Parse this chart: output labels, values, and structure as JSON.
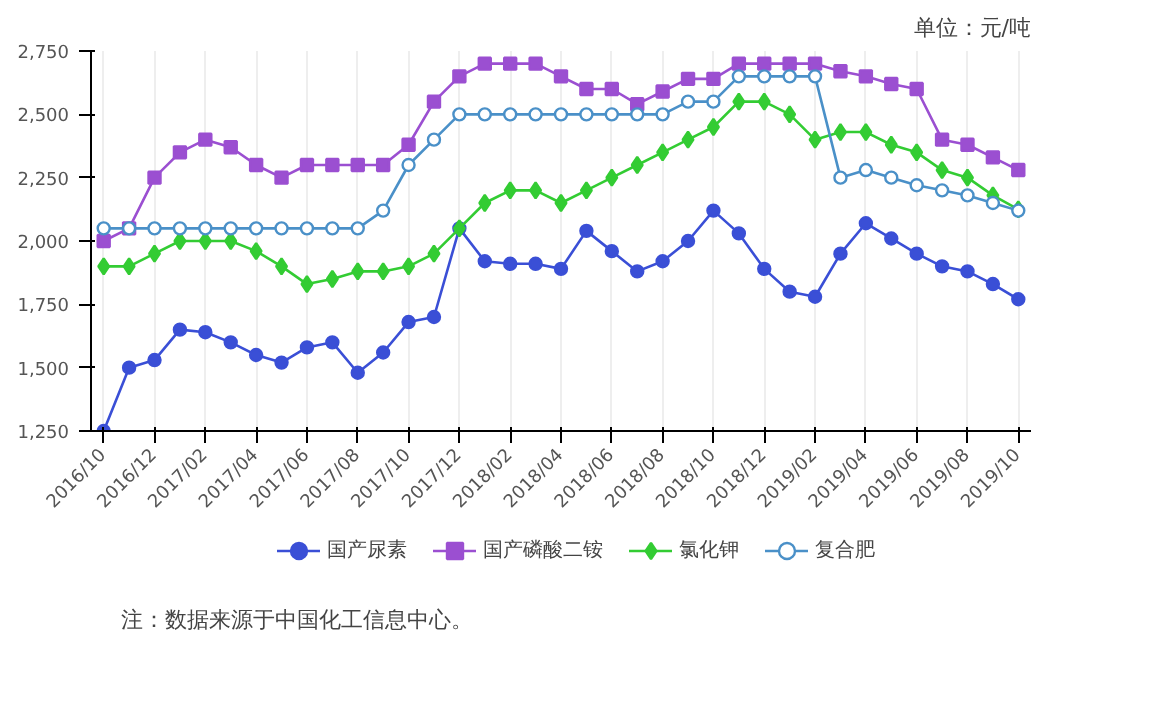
{
  "chart_data": {
    "type": "line",
    "categories": [
      "2016/10",
      null,
      "2016/12",
      null,
      "2017/02",
      null,
      "2017/04",
      null,
      "2017/06",
      null,
      "2017/08",
      null,
      "2017/10",
      null,
      "2017/12",
      null,
      "2018/02",
      null,
      "2018/04",
      null,
      "2018/06",
      null,
      "2018/08",
      null,
      "2018/10",
      null,
      "2018/12",
      null,
      "2019/02",
      null,
      "2019/04",
      null,
      "2019/06",
      null,
      "2019/08",
      null,
      "2019/10"
    ],
    "ylim": [
      1250,
      2750
    ],
    "yticks": [
      {
        "value": 1250,
        "label": "1,250"
      },
      {
        "value": 1500,
        "label": "1,500"
      },
      {
        "value": 1750,
        "label": "1,750"
      },
      {
        "value": 2000,
        "label": "2,000"
      },
      {
        "value": 2250,
        "label": "2,250"
      },
      {
        "value": 2500,
        "label": "2,500"
      },
      {
        "value": 2750,
        "label": "2,750"
      }
    ],
    "grid": "x",
    "legend": "bottom",
    "line_style": "solid",
    "annotations": [
      "单位：元/吨",
      "注：数据来源于中国化工信息中心。"
    ],
    "series": [
      {
        "name": "国产尿素",
        "color": "#3a4fd6",
        "marker": "circle",
        "values": [
          1250,
          1500,
          1530,
          1650,
          1640,
          1600,
          1550,
          1520,
          1580,
          1600,
          1480,
          1560,
          1680,
          1700,
          2050,
          1920,
          1910,
          1910,
          1890,
          2040,
          1960,
          1880,
          1920,
          2000,
          2120,
          2030,
          1890,
          1800,
          1780,
          1950,
          2070,
          2010,
          1950,
          1900,
          1880,
          1830,
          1770
        ]
      },
      {
        "name": "国产磷酸二铵",
        "color": "#9b4fd1",
        "marker": "square",
        "values": [
          2000,
          2050,
          2250,
          2350,
          2400,
          2370,
          2300,
          2250,
          2300,
          2300,
          2300,
          2300,
          2380,
          2550,
          2650,
          2700,
          2700,
          2700,
          2650,
          2600,
          2600,
          2540,
          2590,
          2640,
          2640,
          2700,
          2700,
          2700,
          2700,
          2670,
          2650,
          2620,
          2600,
          2400,
          2380,
          2330,
          2280
        ]
      },
      {
        "name": "氯化钾",
        "color": "#33cc33",
        "marker": "diamond",
        "values": [
          1900,
          1900,
          1950,
          2000,
          2000,
          2000,
          1960,
          1900,
          1830,
          1850,
          1880,
          1880,
          1900,
          1950,
          2050,
          2150,
          2200,
          2200,
          2150,
          2200,
          2250,
          2300,
          2350,
          2400,
          2450,
          2550,
          2550,
          2500,
          2400,
          2430,
          2430,
          2380,
          2350,
          2280,
          2250,
          2180,
          2125
        ]
      },
      {
        "name": "复合肥",
        "color": "#4a90c8",
        "marker": "hollow_circle",
        "values": [
          2050,
          2050,
          2050,
          2050,
          2050,
          2050,
          2050,
          2050,
          2050,
          2050,
          2050,
          2120,
          2300,
          2400,
          2500,
          2500,
          2500,
          2500,
          2500,
          2500,
          2500,
          2500,
          2500,
          2550,
          2550,
          2650,
          2650,
          2650,
          2650,
          2250,
          2280,
          2250,
          2220,
          2200,
          2180,
          2150,
          2120
        ]
      }
    ]
  }
}
